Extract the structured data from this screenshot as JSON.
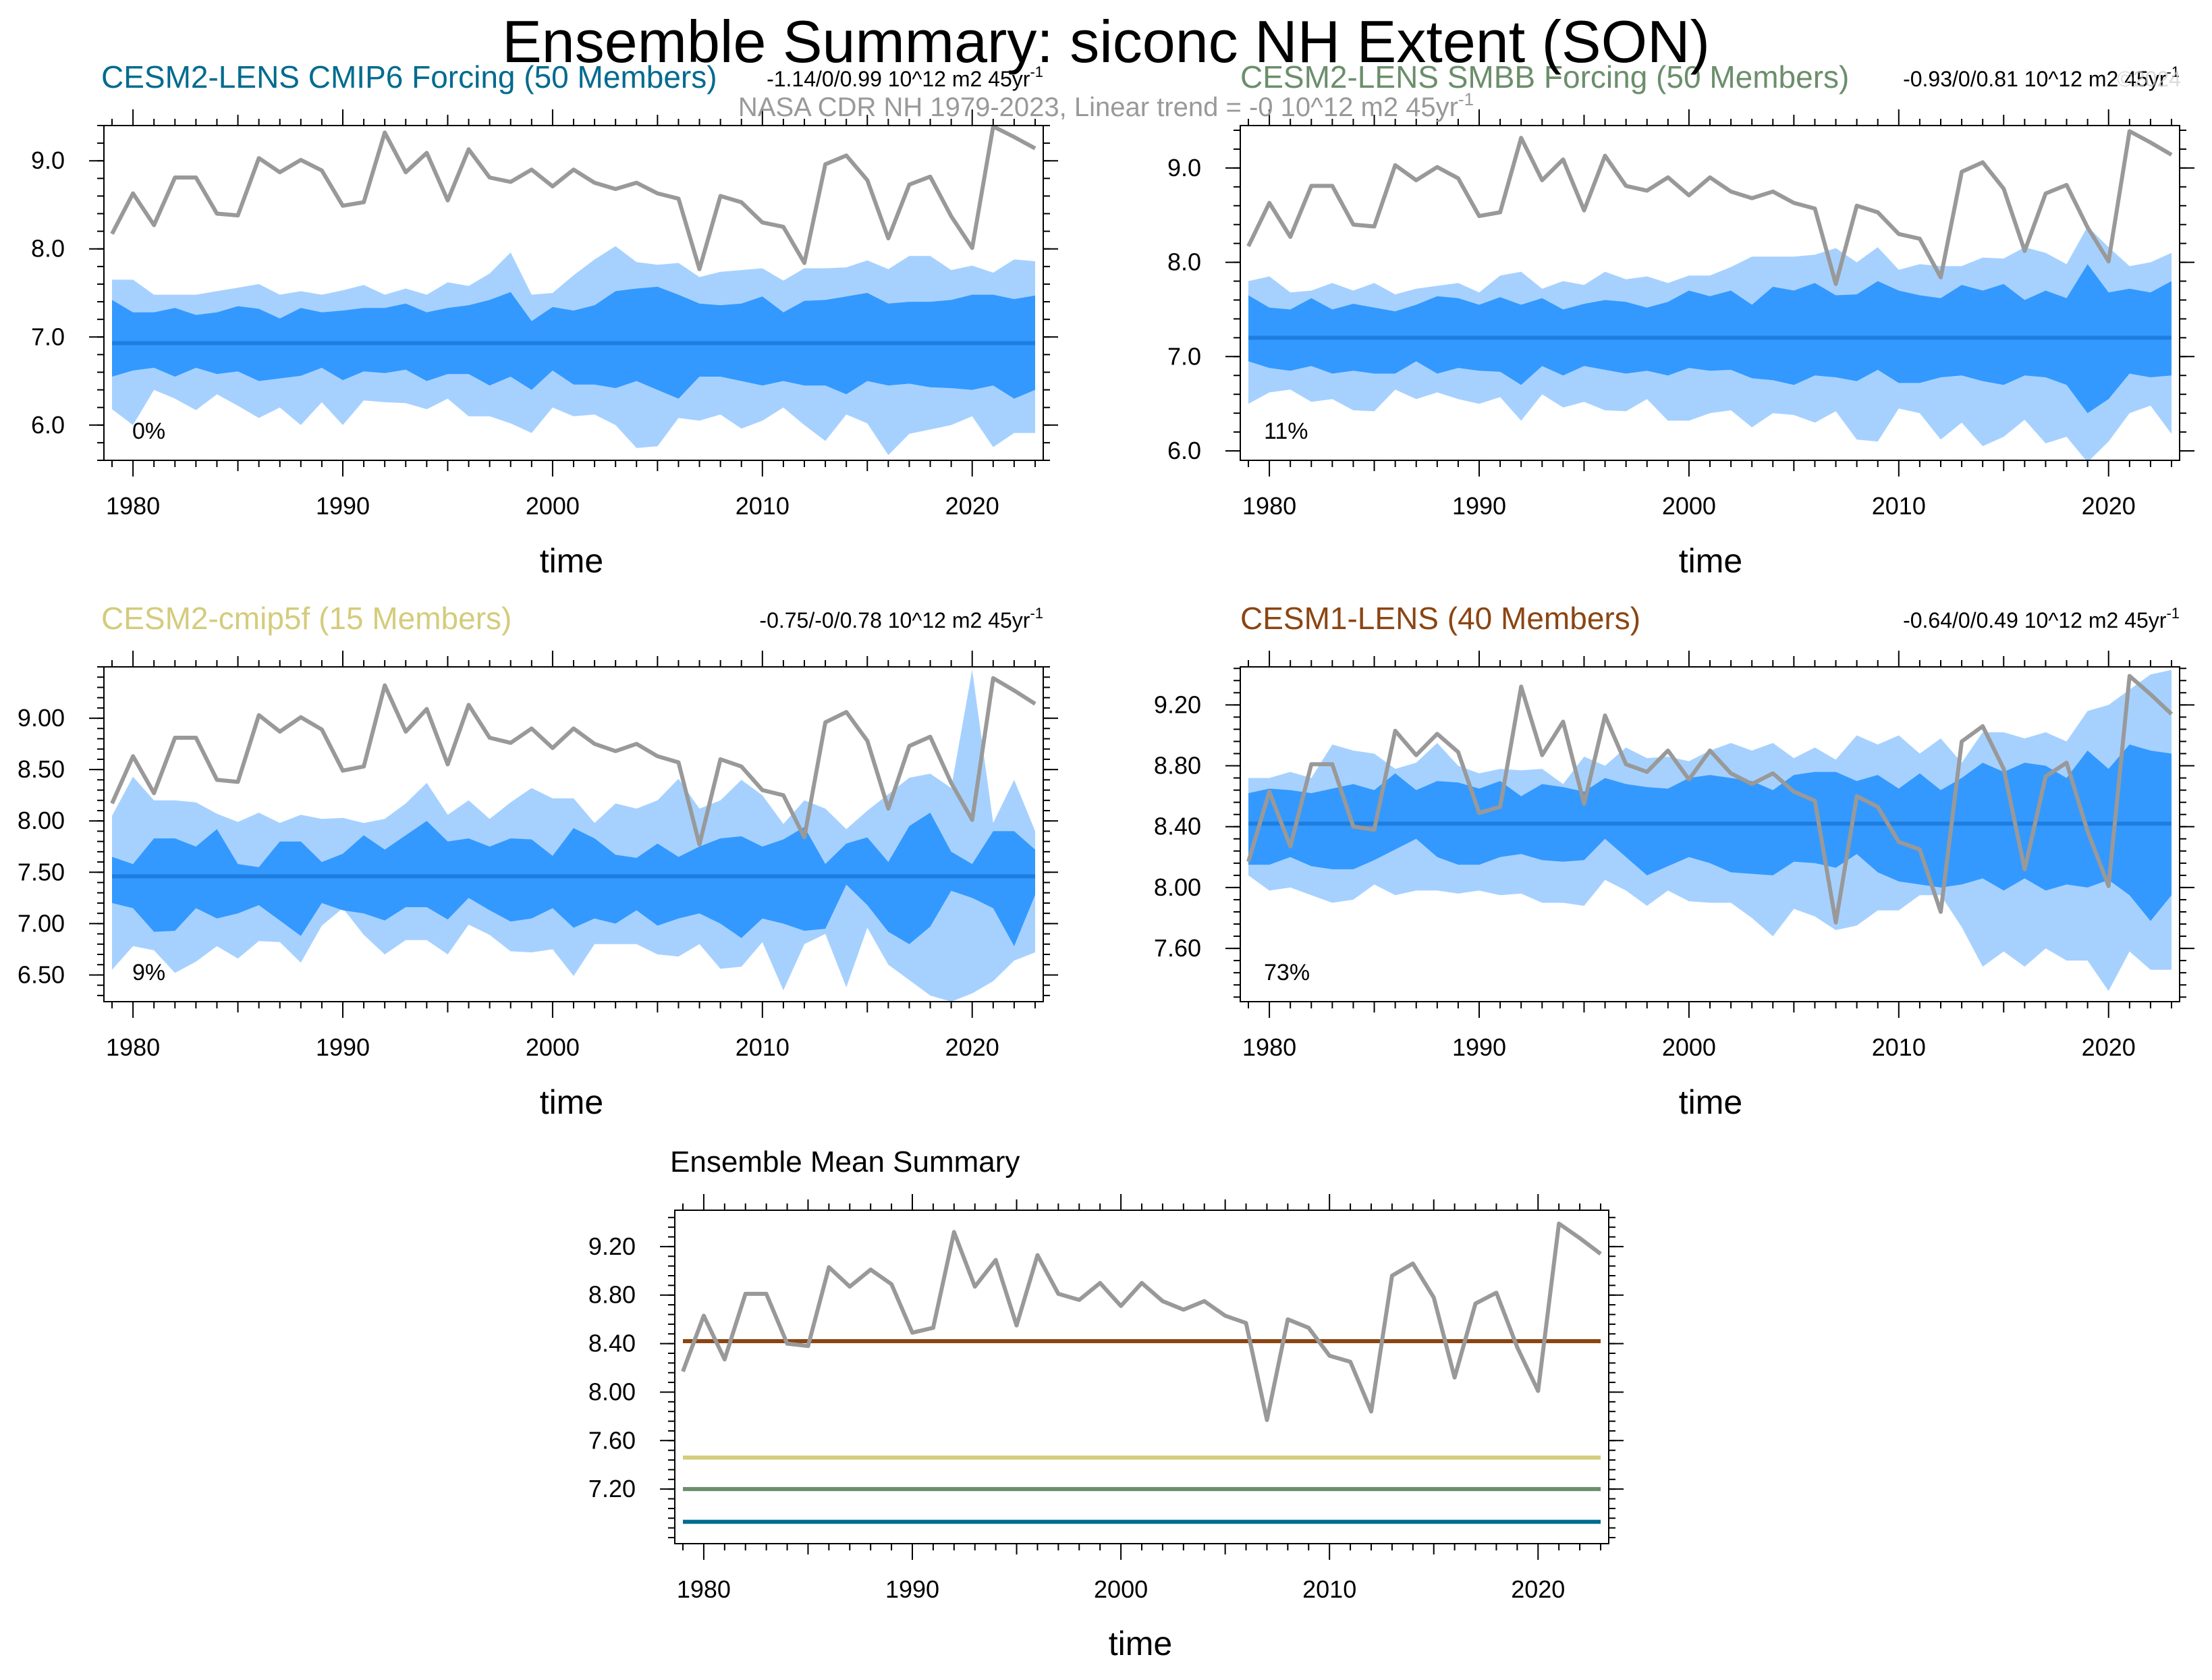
{
  "page": {
    "title": "Ensemble Summary: siconc NH Extent (SON)",
    "subtitle": "NASA CDR NH 1979-2023, Linear trend = -0 10^12 m2 45yr",
    "subtitle_superscript": "-1",
    "watermark": "©2024"
  },
  "observed": {
    "name": "NASA CDR NH",
    "color": "#999999",
    "years": [
      1979,
      1980,
      1981,
      1982,
      1983,
      1984,
      1985,
      1986,
      1987,
      1988,
      1989,
      1990,
      1991,
      1992,
      1993,
      1994,
      1995,
      1996,
      1997,
      1998,
      1999,
      2000,
      2001,
      2002,
      2003,
      2004,
      2005,
      2006,
      2007,
      2008,
      2009,
      2010,
      2011,
      2012,
      2013,
      2014,
      2015,
      2016,
      2017,
      2018,
      2019,
      2020,
      2021,
      2022,
      2023
    ],
    "values": [
      8.17,
      8.63,
      8.27,
      8.81,
      8.81,
      8.4,
      8.38,
      9.03,
      8.87,
      9.01,
      8.89,
      8.49,
      8.53,
      9.32,
      8.87,
      9.09,
      8.55,
      9.13,
      8.81,
      8.76,
      8.9,
      8.71,
      8.9,
      8.75,
      8.68,
      8.75,
      8.63,
      8.57,
      7.77,
      8.6,
      8.53,
      8.3,
      8.25,
      7.84,
      8.96,
      9.06,
      8.78,
      8.12,
      8.73,
      8.82,
      8.37,
      8.01,
      9.39,
      9.27,
      9.14
    ]
  },
  "colors": {
    "inner_band": "#3399ff",
    "outer_band": "#a6d1ff",
    "ensemble_mean": "#1e7ee0",
    "axis": "#000000"
  },
  "chart_data": [
    {
      "type": "area",
      "title": "CESM2-LENS CMIP6 Forcing (50 Members)",
      "title_color": "#006b8f",
      "trend_text": "-1.14/0/0.99 10^12 m2 45yr",
      "trend_superscript": "-1",
      "percent_label": "0%",
      "xlabel": "time",
      "ylabel": "",
      "xlim": [
        1979,
        2023
      ],
      "ylim": [
        5.6,
        9.4
      ],
      "yticks": [
        6.0,
        7.0,
        8.0,
        9.0
      ],
      "ytick_labels": [
        "6.0",
        "7.0",
        "8.0",
        "9.0"
      ],
      "xticks": [
        1980,
        1990,
        2000,
        2010,
        2020
      ],
      "ensemble_mean": 6.93,
      "inner_lower": [
        6.55,
        6.62,
        6.65,
        6.55,
        6.65,
        6.58,
        6.61,
        6.5,
        6.53,
        6.56,
        6.65,
        6.51,
        6.61,
        6.59,
        6.63,
        6.5,
        6.58,
        6.58,
        6.45,
        6.55,
        6.4,
        6.62,
        6.46,
        6.46,
        6.42,
        6.5,
        6.4,
        6.3,
        6.55,
        6.55,
        6.5,
        6.45,
        6.5,
        6.45,
        6.45,
        6.35,
        6.5,
        6.45,
        6.47,
        6.43,
        6.42,
        6.4,
        6.45,
        6.3,
        6.4
      ],
      "inner_upper": [
        7.42,
        7.28,
        7.28,
        7.33,
        7.25,
        7.28,
        7.35,
        7.32,
        7.21,
        7.33,
        7.28,
        7.3,
        7.33,
        7.33,
        7.38,
        7.28,
        7.33,
        7.36,
        7.42,
        7.51,
        7.18,
        7.34,
        7.3,
        7.36,
        7.52,
        7.55,
        7.57,
        7.48,
        7.38,
        7.36,
        7.38,
        7.46,
        7.28,
        7.41,
        7.42,
        7.46,
        7.5,
        7.38,
        7.4,
        7.4,
        7.42,
        7.48,
        7.48,
        7.43,
        7.47
      ],
      "outer_lower": [
        6.18,
        6.0,
        6.4,
        6.3,
        6.17,
        6.35,
        6.22,
        6.08,
        6.2,
        6.0,
        6.26,
        6.0,
        6.28,
        6.26,
        6.25,
        6.18,
        6.3,
        6.1,
        6.1,
        6.02,
        5.91,
        6.2,
        6.1,
        6.12,
        6.0,
        5.74,
        5.76,
        6.08,
        6.05,
        6.12,
        5.96,
        6.05,
        6.2,
        6.0,
        5.82,
        6.12,
        6.02,
        5.66,
        5.9,
        5.95,
        6.0,
        6.1,
        5.75,
        5.91,
        5.91
      ],
      "outer_upper": [
        7.65,
        7.65,
        7.48,
        7.48,
        7.48,
        7.52,
        7.56,
        7.6,
        7.48,
        7.52,
        7.48,
        7.53,
        7.59,
        7.48,
        7.55,
        7.48,
        7.62,
        7.58,
        7.72,
        7.96,
        7.48,
        7.5,
        7.7,
        7.88,
        8.03,
        7.85,
        7.82,
        7.84,
        7.68,
        7.74,
        7.76,
        7.78,
        7.64,
        7.78,
        7.78,
        7.79,
        7.87,
        7.77,
        7.92,
        7.92,
        7.76,
        7.81,
        7.73,
        7.88,
        7.86
      ]
    },
    {
      "type": "area",
      "title": "CESM2-LENS SMBB Forcing (50 Members)",
      "title_color": "#6b8e6b",
      "trend_text": "-0.93/0/0.81 10^12 m2 45yr",
      "trend_superscript": "-1",
      "percent_label": "11%",
      "xlabel": "time",
      "ylabel": "",
      "xlim": [
        1979,
        2023
      ],
      "ylim": [
        5.9,
        9.45
      ],
      "yticks": [
        6.0,
        7.0,
        8.0,
        9.0
      ],
      "ytick_labels": [
        "6.0",
        "7.0",
        "8.0",
        "9.0"
      ],
      "xticks": [
        1980,
        1990,
        2000,
        2010,
        2020
      ],
      "ensemble_mean": 7.2,
      "inner_lower": [
        6.95,
        6.88,
        6.85,
        6.9,
        6.82,
        6.85,
        6.82,
        6.82,
        6.95,
        6.82,
        6.88,
        6.85,
        6.84,
        6.7,
        6.9,
        6.8,
        6.9,
        6.86,
        6.82,
        6.85,
        6.8,
        6.88,
        6.85,
        6.86,
        6.77,
        6.75,
        6.7,
        6.8,
        6.78,
        6.74,
        6.86,
        6.72,
        6.72,
        6.78,
        6.8,
        6.74,
        6.7,
        6.8,
        6.78,
        6.7,
        6.4,
        6.55,
        6.82,
        6.78,
        6.8
      ],
      "inner_upper": [
        7.65,
        7.52,
        7.5,
        7.62,
        7.5,
        7.56,
        7.52,
        7.48,
        7.55,
        7.64,
        7.62,
        7.55,
        7.63,
        7.55,
        7.62,
        7.5,
        7.56,
        7.6,
        7.58,
        7.52,
        7.58,
        7.7,
        7.64,
        7.7,
        7.55,
        7.74,
        7.7,
        7.78,
        7.65,
        7.66,
        7.8,
        7.7,
        7.65,
        7.62,
        7.76,
        7.7,
        7.77,
        7.6,
        7.7,
        7.62,
        7.98,
        7.68,
        7.72,
        7.68,
        7.8
      ],
      "outer_lower": [
        6.5,
        6.62,
        6.65,
        6.52,
        6.55,
        6.43,
        6.42,
        6.65,
        6.55,
        6.62,
        6.55,
        6.5,
        6.57,
        6.32,
        6.6,
        6.46,
        6.52,
        6.43,
        6.42,
        6.55,
        6.32,
        6.32,
        6.4,
        6.43,
        6.25,
        6.4,
        6.38,
        6.3,
        6.42,
        6.12,
        6.1,
        6.45,
        6.4,
        6.12,
        6.3,
        6.05,
        6.15,
        6.33,
        6.08,
        6.15,
        5.88,
        6.1,
        6.4,
        6.48,
        6.18
      ],
      "outer_upper": [
        7.8,
        7.85,
        7.68,
        7.7,
        7.78,
        7.7,
        7.78,
        7.66,
        7.72,
        7.75,
        7.78,
        7.68,
        7.86,
        7.9,
        7.72,
        7.8,
        7.76,
        7.9,
        7.82,
        7.85,
        7.78,
        7.86,
        7.86,
        7.95,
        8.06,
        8.06,
        8.06,
        8.08,
        8.15,
        8.0,
        8.16,
        7.92,
        7.98,
        7.96,
        7.96,
        8.05,
        8.04,
        8.16,
        8.1,
        7.98,
        8.38,
        8.16,
        7.96,
        8.0,
        8.1
      ]
    },
    {
      "type": "area",
      "title": "CESM2-cmip5f (15 Members)",
      "title_color": "#d4cc7c",
      "trend_text": "-0.75/-0/0.78 10^12 m2 45yr",
      "trend_superscript": "-1",
      "percent_label": "9%",
      "xlabel": "time",
      "ylabel": "",
      "xlim": [
        1979,
        2023
      ],
      "ylim": [
        6.24,
        9.5
      ],
      "yticks": [
        6.5,
        7.0,
        7.5,
        8.0,
        8.5,
        9.0
      ],
      "ytick_labels": [
        "6.50",
        "7.00",
        "7.50",
        "8.00",
        "8.50",
        "9.00"
      ],
      "xticks": [
        1980,
        1990,
        2000,
        2010,
        2020
      ],
      "ensemble_mean": 7.46,
      "inner_lower": [
        7.2,
        7.15,
        6.92,
        6.93,
        7.15,
        7.05,
        7.1,
        7.18,
        7.03,
        6.88,
        7.2,
        7.13,
        7.1,
        7.03,
        7.16,
        7.16,
        7.04,
        7.25,
        7.13,
        7.02,
        7.05,
        7.15,
        6.96,
        7.05,
        7.0,
        7.13,
        6.98,
        7.05,
        7.1,
        7.0,
        6.86,
        7.05,
        7.0,
        6.93,
        6.95,
        7.38,
        7.18,
        6.92,
        6.8,
        6.97,
        7.32,
        7.25,
        7.15,
        6.78,
        7.28
      ],
      "inner_upper": [
        7.65,
        7.58,
        7.83,
        7.83,
        7.75,
        7.92,
        7.58,
        7.55,
        7.8,
        7.8,
        7.6,
        7.68,
        7.86,
        7.72,
        7.86,
        8.0,
        7.8,
        7.83,
        7.75,
        7.83,
        7.82,
        7.66,
        7.93,
        7.83,
        7.67,
        7.64,
        7.78,
        7.65,
        7.75,
        7.83,
        7.85,
        7.75,
        7.82,
        7.94,
        7.58,
        7.78,
        7.84,
        7.6,
        7.95,
        8.08,
        7.7,
        7.58,
        7.9,
        7.9,
        7.72
      ],
      "outer_lower": [
        6.55,
        6.78,
        6.74,
        6.52,
        6.63,
        6.78,
        6.66,
        6.83,
        6.82,
        6.62,
        6.98,
        7.15,
        6.89,
        6.7,
        6.84,
        6.84,
        6.7,
        6.99,
        6.89,
        6.73,
        6.72,
        6.75,
        6.49,
        6.8,
        6.8,
        6.8,
        6.7,
        6.68,
        6.8,
        6.56,
        6.58,
        6.82,
        6.35,
        6.8,
        6.9,
        6.38,
        6.96,
        6.6,
        6.45,
        6.3,
        6.24,
        6.32,
        6.44,
        6.64,
        6.72
      ],
      "outer_upper": [
        8.05,
        8.43,
        8.2,
        8.2,
        8.18,
        8.07,
        7.99,
        8.08,
        7.98,
        8.06,
        8.02,
        8.03,
        7.98,
        8.02,
        8.17,
        8.37,
        8.06,
        8.2,
        8.02,
        8.18,
        8.32,
        8.22,
        8.22,
        7.98,
        8.17,
        8.12,
        8.2,
        8.41,
        8.12,
        8.2,
        8.4,
        8.25,
        7.97,
        8.2,
        8.12,
        7.92,
        8.1,
        8.26,
        8.42,
        8.46,
        8.32,
        9.47,
        7.98,
        8.4,
        7.9
      ]
    },
    {
      "type": "area",
      "title": "CESM1-LENS (40 Members)",
      "title_color": "#8b4513",
      "trend_text": "-0.64/0/0.49 10^12 m2 45yr",
      "trend_superscript": "-1",
      "percent_label": "73%",
      "xlabel": "time",
      "ylabel": "",
      "xlim": [
        1979,
        2023
      ],
      "ylim": [
        7.25,
        9.45
      ],
      "yticks": [
        7.6,
        8.0,
        8.4,
        8.8,
        9.2
      ],
      "ytick_labels": [
        "7.60",
        "8.00",
        "8.40",
        "8.80",
        "9.20"
      ],
      "xticks": [
        1980,
        1990,
        2000,
        2010,
        2020
      ],
      "ensemble_mean": 8.42,
      "inner_lower": [
        8.15,
        8.15,
        8.2,
        8.14,
        8.12,
        8.12,
        8.18,
        8.25,
        8.32,
        8.2,
        8.15,
        8.15,
        8.2,
        8.22,
        8.18,
        8.17,
        8.18,
        8.32,
        8.2,
        8.08,
        8.14,
        8.2,
        8.16,
        8.1,
        8.09,
        8.08,
        8.17,
        8.16,
        8.13,
        8.22,
        8.1,
        8.04,
        8.02,
        8.0,
        8.02,
        8.06,
        7.98,
        8.06,
        7.98,
        8.02,
        8.0,
        8.05,
        7.95,
        7.78,
        7.95
      ],
      "inner_upper": [
        8.62,
        8.65,
        8.64,
        8.62,
        8.65,
        8.68,
        8.64,
        8.75,
        8.64,
        8.7,
        8.69,
        8.65,
        8.7,
        8.6,
        8.68,
        8.66,
        8.63,
        8.72,
        8.68,
        8.66,
        8.65,
        8.72,
        8.74,
        8.72,
        8.7,
        8.64,
        8.74,
        8.76,
        8.76,
        8.7,
        8.74,
        8.65,
        8.75,
        8.64,
        8.72,
        8.82,
        8.76,
        8.82,
        8.8,
        8.72,
        8.9,
        8.78,
        8.94,
        8.9,
        8.88
      ],
      "outer_lower": [
        8.08,
        7.98,
        8.0,
        7.95,
        7.9,
        7.92,
        8.02,
        7.95,
        7.98,
        7.98,
        7.96,
        7.98,
        7.95,
        7.96,
        7.9,
        7.9,
        7.88,
        8.05,
        7.98,
        7.88,
        7.98,
        7.91,
        7.9,
        7.9,
        7.8,
        7.68,
        7.86,
        7.81,
        7.72,
        7.75,
        7.85,
        7.85,
        7.95,
        7.95,
        7.74,
        7.48,
        7.58,
        7.48,
        7.6,
        7.52,
        7.52,
        7.32,
        7.58,
        7.46,
        7.46
      ],
      "outer_upper": [
        8.72,
        8.72,
        8.76,
        8.72,
        8.94,
        8.9,
        8.88,
        8.78,
        8.82,
        8.95,
        8.8,
        8.75,
        8.78,
        8.77,
        8.78,
        8.68,
        8.86,
        8.8,
        8.92,
        8.85,
        8.86,
        8.83,
        8.9,
        8.95,
        8.9,
        8.95,
        8.85,
        8.92,
        8.84,
        9.0,
        8.94,
        9.0,
        8.88,
        8.98,
        8.82,
        9.02,
        9.02,
        8.98,
        9.02,
        8.96,
        9.16,
        9.2,
        9.3,
        9.4,
        9.43
      ]
    },
    {
      "type": "line",
      "title": "Ensemble Mean Summary",
      "xlabel": "time",
      "ylabel": "",
      "xlim": [
        1979,
        2023
      ],
      "ylim": [
        6.75,
        9.5
      ],
      "yticks": [
        7.2,
        7.6,
        8.0,
        8.4,
        8.8,
        9.2
      ],
      "ytick_labels": [
        "7.20",
        "7.60",
        "8.00",
        "8.40",
        "8.80",
        "9.20"
      ],
      "xticks": [
        1980,
        1990,
        2000,
        2010,
        2020
      ],
      "series": [
        {
          "color": "#8b4513",
          "value": 8.42
        },
        {
          "color": "#d4cc7c",
          "value": 7.46
        },
        {
          "color": "#6b8e6b",
          "value": 7.2
        },
        {
          "color": "#006b8f",
          "value": 6.93
        }
      ]
    }
  ]
}
